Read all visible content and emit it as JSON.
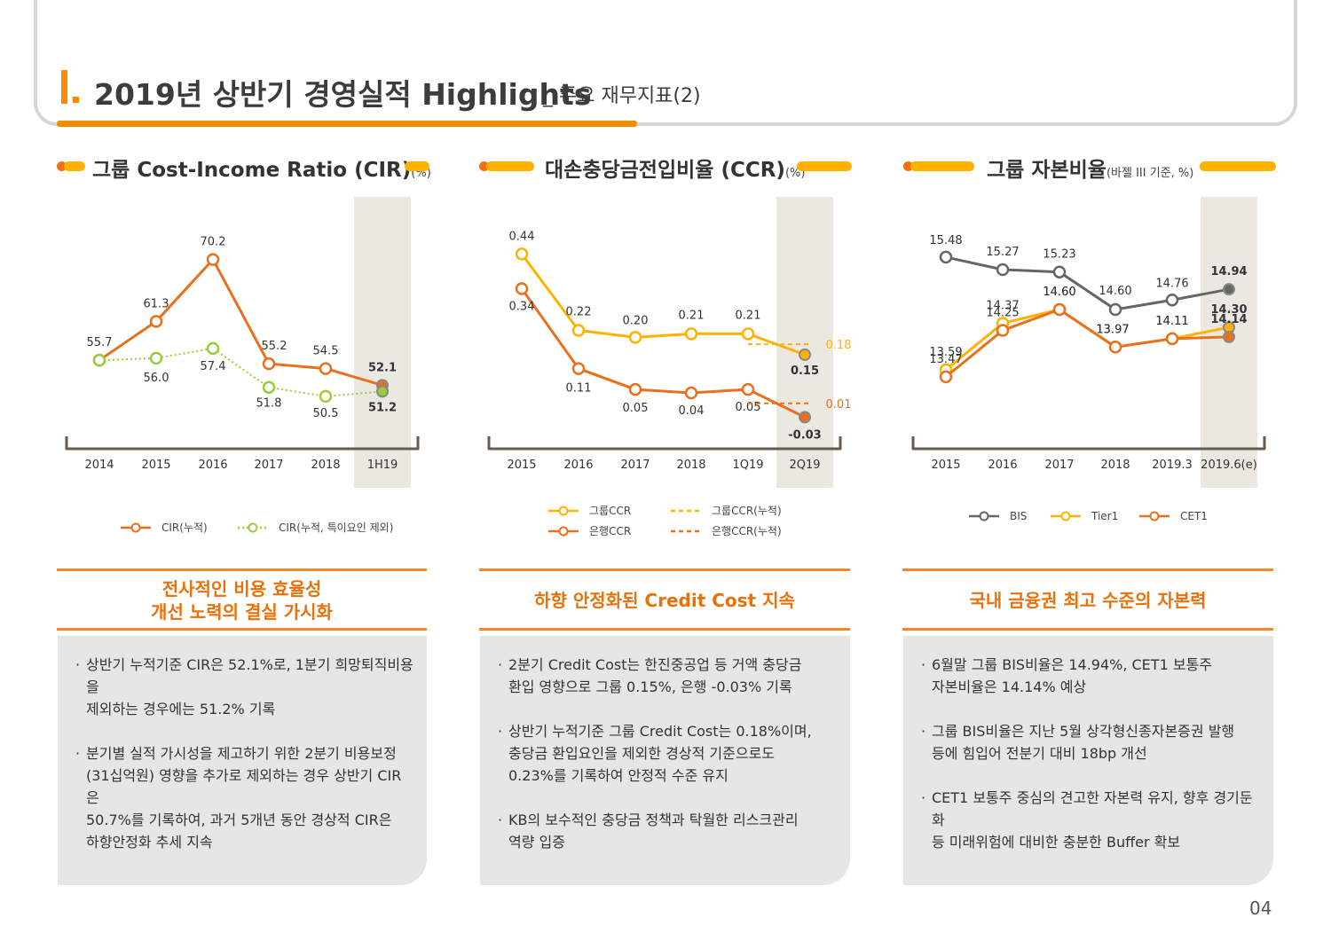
{
  "header": {
    "title": "2019년 상반기 경영실적 Highlights",
    "subtitle": "_ 주요 재무지표(2)",
    "page_number": "04"
  },
  "panels": [
    {
      "title": "그룹 Cost-Income Ratio (CIR)",
      "unit": "(%)",
      "headline": "전사적인 비용 효율성\n개선 노력의 결실 가시화",
      "bullets": [
        "상반기 누적기준 CIR은 52.1%로, 1분기 희망퇴직비용을\n제외하는 경우에는 51.2% 기록",
        "분기별 실적 가시성을 제고하기 위한 2분기 비용보정\n(31십억원) 영향을 추가로 제외하는 경우 상반기 CIR은\n50.7%를 기록하여, 과거 5개년 동안 경상적 CIR은\n하향안정화 추세 지속"
      ]
    },
    {
      "title": "대손충당금전입비율 (CCR)",
      "unit": "(%)",
      "headline": "하향 안정화된 Credit Cost 지속",
      "bullets": [
        "2분기 Credit Cost는 한진중공업 등 거액 충당금\n환입 영향으로 그룹 0.15%, 은행 -0.03% 기록",
        "상반기 누적기준 그룹 Credit Cost는 0.18%이며,\n충당금 환입요인을 제외한 경상적 기준으로도\n0.23%를 기록하여 안정적 수준 유지",
        "KB의 보수적인 충당금 정책과 탁월한 리스크관리\n역량 입증"
      ]
    },
    {
      "title": "그룹 자본비율",
      "unit": "(바젤 III 기준, %)",
      "headline": "국내 금융권 최고 수준의 자본력",
      "bullets": [
        "6월말 그룹 BIS비율은  14.94%, CET1 보통주\n자본비율은 14.14% 예상",
        "그룹 BIS비율은 지난 5월 상각형신종자본증권 발행\n등에 힘입어 전분기 대비 18bp 개선",
        "CET1 보통주 중심의 견고한 자본력 유지, 향후 경기둔화\n등 미래위험에 대비한 충분한 Buffer 확보"
      ]
    }
  ],
  "colors": {
    "orange_dark": "#e8701e",
    "orange_light": "#ffb300",
    "green": "#9ccc3c",
    "gray": "#666666",
    "highlight_bg": "#ebe8e2"
  },
  "chart_data": [
    {
      "type": "line",
      "categories": [
        "2014",
        "2015",
        "2016",
        "2017",
        "2018",
        "1H19"
      ],
      "series": [
        {
          "name": "CIR(누적)",
          "values": [
            55.7,
            61.3,
            70.2,
            55.2,
            54.5,
            52.1
          ],
          "labels": [
            "55.7",
            "61.3",
            "70.2",
            "55.2",
            "54.5",
            "52.1"
          ],
          "style": "solid",
          "color": "#e8701e"
        },
        {
          "name": "CIR(누적, 특이요인 제외)",
          "values": [
            55.7,
            56.0,
            57.4,
            51.8,
            50.5,
            51.2
          ],
          "labels": [
            "",
            "56.0",
            "57.4",
            "51.8",
            "50.5",
            "51.2"
          ],
          "style": "dotted",
          "color": "#9ccc3c"
        }
      ],
      "highlight_category": "1H19",
      "ylim": [
        45,
        75
      ]
    },
    {
      "type": "line",
      "categories": [
        "2015",
        "2016",
        "2017",
        "2018",
        "1Q19",
        "2Q19"
      ],
      "series": [
        {
          "name": "그룹CCR",
          "values": [
            0.44,
            0.22,
            0.2,
            0.21,
            0.21,
            0.15
          ],
          "labels": [
            "0.44",
            "0.22",
            "0.20",
            "0.21",
            "0.21",
            "0.15"
          ],
          "style": "solid",
          "color": "#ffb300"
        },
        {
          "name": "은행CCR",
          "values": [
            0.34,
            0.11,
            0.05,
            0.04,
            0.05,
            -0.03
          ],
          "labels": [
            "0.34",
            "0.11",
            "0.05",
            "0.04",
            "0.05",
            "-0.03"
          ],
          "style": "solid",
          "color": "#e8701e"
        },
        {
          "name": "그룹CCR(누적)",
          "values": [
            null,
            null,
            null,
            null,
            0.18,
            0.18
          ],
          "labels": [
            "",
            "",
            "",
            "",
            "",
            "0.18"
          ],
          "style": "dashed",
          "color": "#ffb300"
        },
        {
          "name": "은행CCR(누적)",
          "values": [
            null,
            null,
            null,
            null,
            0.01,
            0.01
          ],
          "labels": [
            "",
            "",
            "",
            "",
            "",
            "0.01"
          ],
          "style": "dashed",
          "color": "#e8701e"
        }
      ],
      "highlight_category": "2Q19",
      "ylim": [
        -0.08,
        0.52
      ]
    },
    {
      "type": "line",
      "categories": [
        "2015",
        "2016",
        "2017",
        "2018",
        "2019.3",
        "2019.6(e)"
      ],
      "series": [
        {
          "name": "BIS",
          "values": [
            15.48,
            15.27,
            15.23,
            14.6,
            14.76,
            14.94
          ],
          "labels": [
            "15.48",
            "15.27",
            "15.23",
            "14.60",
            "14.76",
            "14.94"
          ],
          "style": "solid",
          "color": "#666666"
        },
        {
          "name": "Tier1",
          "values": [
            13.59,
            14.37,
            14.6,
            13.97,
            14.11,
            14.3
          ],
          "labels": [
            "13.59",
            "14.37",
            "14.60",
            "13.97",
            "14.11",
            "14.30"
          ],
          "style": "solid",
          "color": "#ffb300"
        },
        {
          "name": "CET1",
          "values": [
            13.47,
            14.25,
            14.6,
            13.97,
            14.11,
            14.14
          ],
          "labels": [
            "13.47",
            "14.25",
            "14.60",
            "13.97",
            "14.11",
            "14.14"
          ],
          "style": "solid",
          "color": "#e8701e"
        }
      ],
      "highlight_category": "2019.6(e)",
      "ylim": [
        12.5,
        16.0
      ]
    }
  ]
}
